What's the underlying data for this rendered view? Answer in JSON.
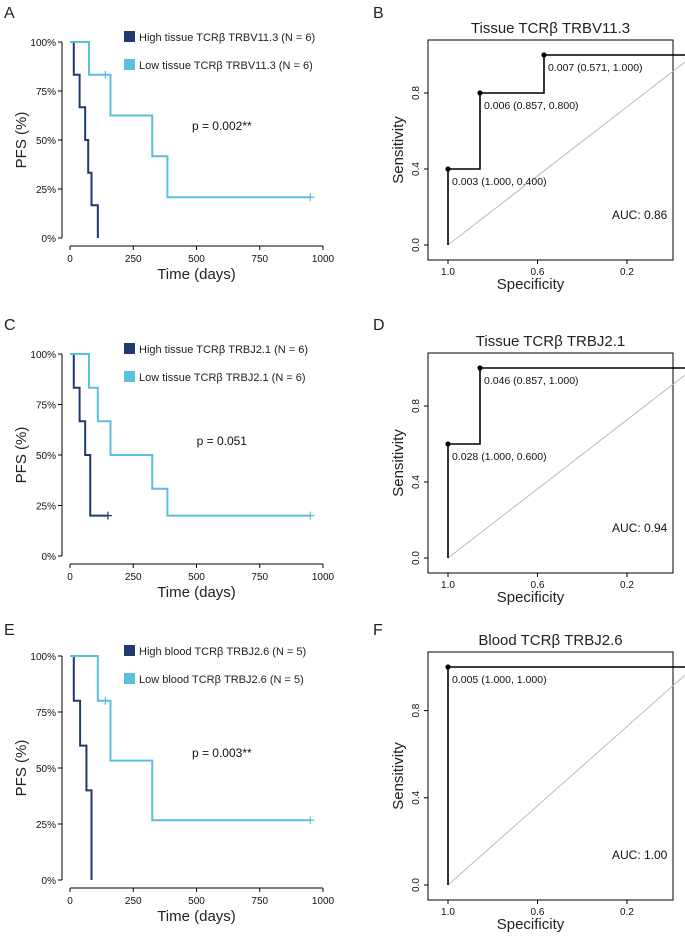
{
  "colors": {
    "high": "#1f3a6e",
    "low": "#5bbfde",
    "axis": "#000000",
    "diag": "#bbbbbb"
  },
  "chart_data": [
    {
      "type": "line",
      "subtype": "kaplan-meier",
      "panel": "A",
      "xlabel": "Time (days)",
      "ylabel": "PFS (%)",
      "xlim": [
        0,
        1000
      ],
      "ylim": [
        0,
        1
      ],
      "xticks": [
        "0",
        "250",
        "500",
        "750",
        "1000"
      ],
      "yticks": [
        "0%",
        "25%",
        "50%",
        "75%",
        "100%"
      ],
      "legend_position": "top",
      "annotation": "p = 0.002**",
      "series": [
        {
          "name": "High tissue TCRβ TRBV11.3 (N = 6)",
          "color_key": "high",
          "x": [
            0,
            15,
            38,
            60,
            72,
            85,
            110
          ],
          "y": [
            1.0,
            0.833,
            0.667,
            0.5,
            0.333,
            0.167,
            0.0
          ],
          "censored": []
        },
        {
          "name": "Low tissue TCRβ TRBV11.3 (N = 6)",
          "color_key": "low",
          "x": [
            0,
            75,
            160,
            325,
            385,
            950
          ],
          "y": [
            1.0,
            0.833,
            0.625,
            0.417,
            0.208,
            0.208
          ],
          "censored": [
            [
              140,
              0.833
            ],
            [
              950,
              0.208
            ]
          ]
        }
      ]
    },
    {
      "type": "line",
      "subtype": "roc",
      "panel": "B",
      "title": "Tissue TCRβ TRBV11.3",
      "xlabel": "Specificity",
      "ylabel": "Sensitivity",
      "xlim": [
        1.0,
        -0.1
      ],
      "ylim": [
        0,
        1
      ],
      "xticks": [
        "1.0",
        "0.6",
        "0.2"
      ],
      "yticks": [
        "0.0",
        "0.4",
        "0.8"
      ],
      "auc": "AUC: 0.86",
      "x": [
        1.0,
        1.0,
        0.857,
        0.857,
        0.571,
        0.571,
        -0.1
      ],
      "y": [
        0.0,
        0.4,
        0.4,
        0.8,
        0.8,
        1.0,
        1.0
      ],
      "points": [
        {
          "x": 1.0,
          "y": 0.4,
          "label": "0.003 (1.000, 0.400)"
        },
        {
          "x": 0.857,
          "y": 0.8,
          "label": "0.006 (0.857, 0.800)"
        },
        {
          "x": 0.571,
          "y": 1.0,
          "label": "0.007 (0.571, 1.000)"
        }
      ]
    },
    {
      "type": "line",
      "subtype": "kaplan-meier",
      "panel": "C",
      "xlabel": "Time (days)",
      "ylabel": "PFS (%)",
      "xlim": [
        0,
        1000
      ],
      "ylim": [
        0,
        1
      ],
      "xticks": [
        "0",
        "250",
        "500",
        "750",
        "1000"
      ],
      "yticks": [
        "0%",
        "25%",
        "50%",
        "75%",
        "100%"
      ],
      "legend_position": "top",
      "annotation": "p = 0.051",
      "series": [
        {
          "name": "High tissue TCRβ TRBJ2.1 (N = 6)",
          "color_key": "high",
          "x": [
            0,
            15,
            38,
            60,
            80,
            150
          ],
          "y": [
            1.0,
            0.833,
            0.667,
            0.5,
            0.2,
            0.2
          ],
          "censored": [
            [
              150,
              0.2
            ]
          ]
        },
        {
          "name": "Low tissue TCRβ TRBJ2.1 (N = 6)",
          "color_key": "low",
          "x": [
            0,
            75,
            110,
            160,
            325,
            385,
            950
          ],
          "y": [
            1.0,
            0.833,
            0.667,
            0.5,
            0.333,
            0.2,
            0.2
          ],
          "censored": [
            [
              950,
              0.2
            ]
          ]
        }
      ]
    },
    {
      "type": "line",
      "subtype": "roc",
      "panel": "D",
      "title": "Tissue TCRβ TRBJ2.1",
      "xlabel": "Specificity",
      "ylabel": "Sensitivity",
      "xlim": [
        1.0,
        -0.1
      ],
      "ylim": [
        0,
        1
      ],
      "xticks": [
        "1.0",
        "0.6",
        "0.2"
      ],
      "yticks": [
        "0.0",
        "0.4",
        "0.8"
      ],
      "auc": "AUC: 0.94",
      "x": [
        1.0,
        1.0,
        0.857,
        0.857,
        -0.1
      ],
      "y": [
        0.0,
        0.6,
        0.6,
        1.0,
        1.0
      ],
      "points": [
        {
          "x": 1.0,
          "y": 0.6,
          "label": "0.028 (1.000, 0.600)"
        },
        {
          "x": 0.857,
          "y": 1.0,
          "label": "0.046 (0.857, 1.000)"
        }
      ]
    },
    {
      "type": "line",
      "subtype": "kaplan-meier",
      "panel": "E",
      "xlabel": "Time (days)",
      "ylabel": "PFS (%)",
      "xlim": [
        0,
        1000
      ],
      "ylim": [
        0,
        1
      ],
      "xticks": [
        "0",
        "250",
        "500",
        "750",
        "1000"
      ],
      "yticks": [
        "0%",
        "25%",
        "50%",
        "75%",
        "100%"
      ],
      "legend_position": "top",
      "annotation": "p = 0.003**",
      "series": [
        {
          "name": "High blood TCRβ TRBJ2.6 (N = 5)",
          "color_key": "high",
          "x": [
            0,
            15,
            40,
            65,
            85
          ],
          "y": [
            1.0,
            0.8,
            0.6,
            0.4,
            0.0
          ],
          "censored": []
        },
        {
          "name": "Low blood TCRβ TRBJ2.6 (N = 5)",
          "color_key": "low",
          "x": [
            0,
            110,
            160,
            325,
            950
          ],
          "y": [
            1.0,
            0.8,
            0.533,
            0.267,
            0.267
          ],
          "censored": [
            [
              140,
              0.8
            ],
            [
              950,
              0.267
            ]
          ]
        }
      ]
    },
    {
      "type": "line",
      "subtype": "roc",
      "panel": "F",
      "title": "Blood TCRβ TRBJ2.6",
      "xlabel": "Specificity",
      "ylabel": "Sensitivity",
      "xlim": [
        1.0,
        -0.1
      ],
      "ylim": [
        0,
        1
      ],
      "xticks": [
        "1.0",
        "0.6",
        "0.2"
      ],
      "yticks": [
        "0.0",
        "0.4",
        "0.8"
      ],
      "auc": "AUC: 1.00",
      "x": [
        1.0,
        1.0,
        -0.1
      ],
      "y": [
        0.0,
        1.0,
        1.0
      ],
      "points": [
        {
          "x": 1.0,
          "y": 1.0,
          "label": "0.005 (1.000, 1.000)"
        }
      ]
    }
  ]
}
